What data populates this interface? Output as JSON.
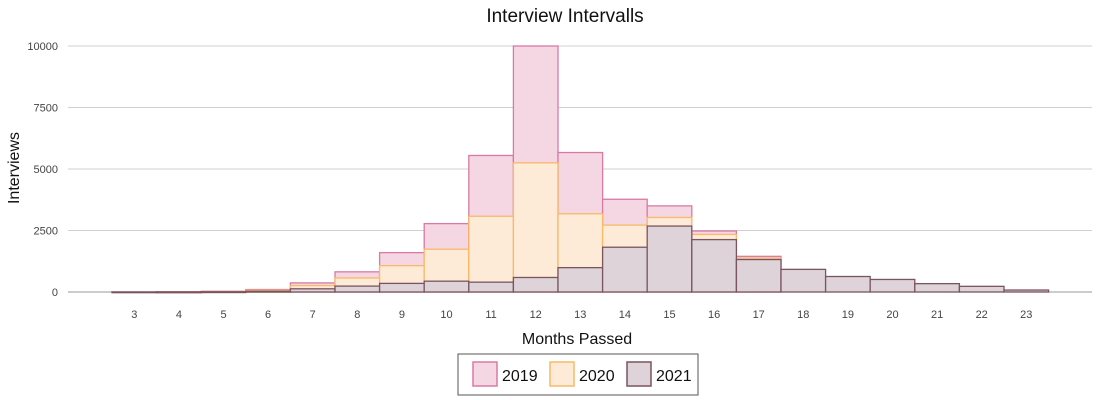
{
  "chart_data": {
    "type": "bar",
    "title": "Interview Intervalls",
    "xlabel": "Months Passed",
    "ylabel": "Interviews",
    "categories": [
      "3",
      "4",
      "5",
      "6",
      "7",
      "8",
      "9",
      "10",
      "11",
      "12",
      "13",
      "14",
      "15",
      "16",
      "17",
      "18",
      "19",
      "20",
      "21",
      "22",
      "23"
    ],
    "ylim": [
      0,
      10000
    ],
    "yticks": [
      0,
      2500,
      5000,
      7500,
      10000
    ],
    "grid": true,
    "legend_position": "bottom",
    "series": [
      {
        "name": "2019",
        "fill": "#f5d6e3",
        "stroke": "#d97aa4",
        "values": [
          0,
          10,
          30,
          100,
          370,
          820,
          1600,
          2780,
          5550,
          10000,
          5670,
          3770,
          3500,
          2480,
          1450,
          0,
          0,
          0,
          0,
          0,
          0
        ]
      },
      {
        "name": "2020",
        "fill": "#fdebd8",
        "stroke": "#f7b96a",
        "values": [
          0,
          5,
          20,
          70,
          260,
          570,
          1070,
          1740,
          3080,
          5250,
          3180,
          2720,
          3030,
          2340,
          1380,
          0,
          0,
          0,
          0,
          0,
          0
        ]
      },
      {
        "name": "2021",
        "fill": "#ddd3d8",
        "stroke": "#7a5560",
        "values": [
          5,
          5,
          10,
          30,
          130,
          240,
          350,
          440,
          400,
          590,
          990,
          1820,
          2680,
          2130,
          1320,
          920,
          630,
          510,
          340,
          230,
          80
        ]
      }
    ]
  }
}
